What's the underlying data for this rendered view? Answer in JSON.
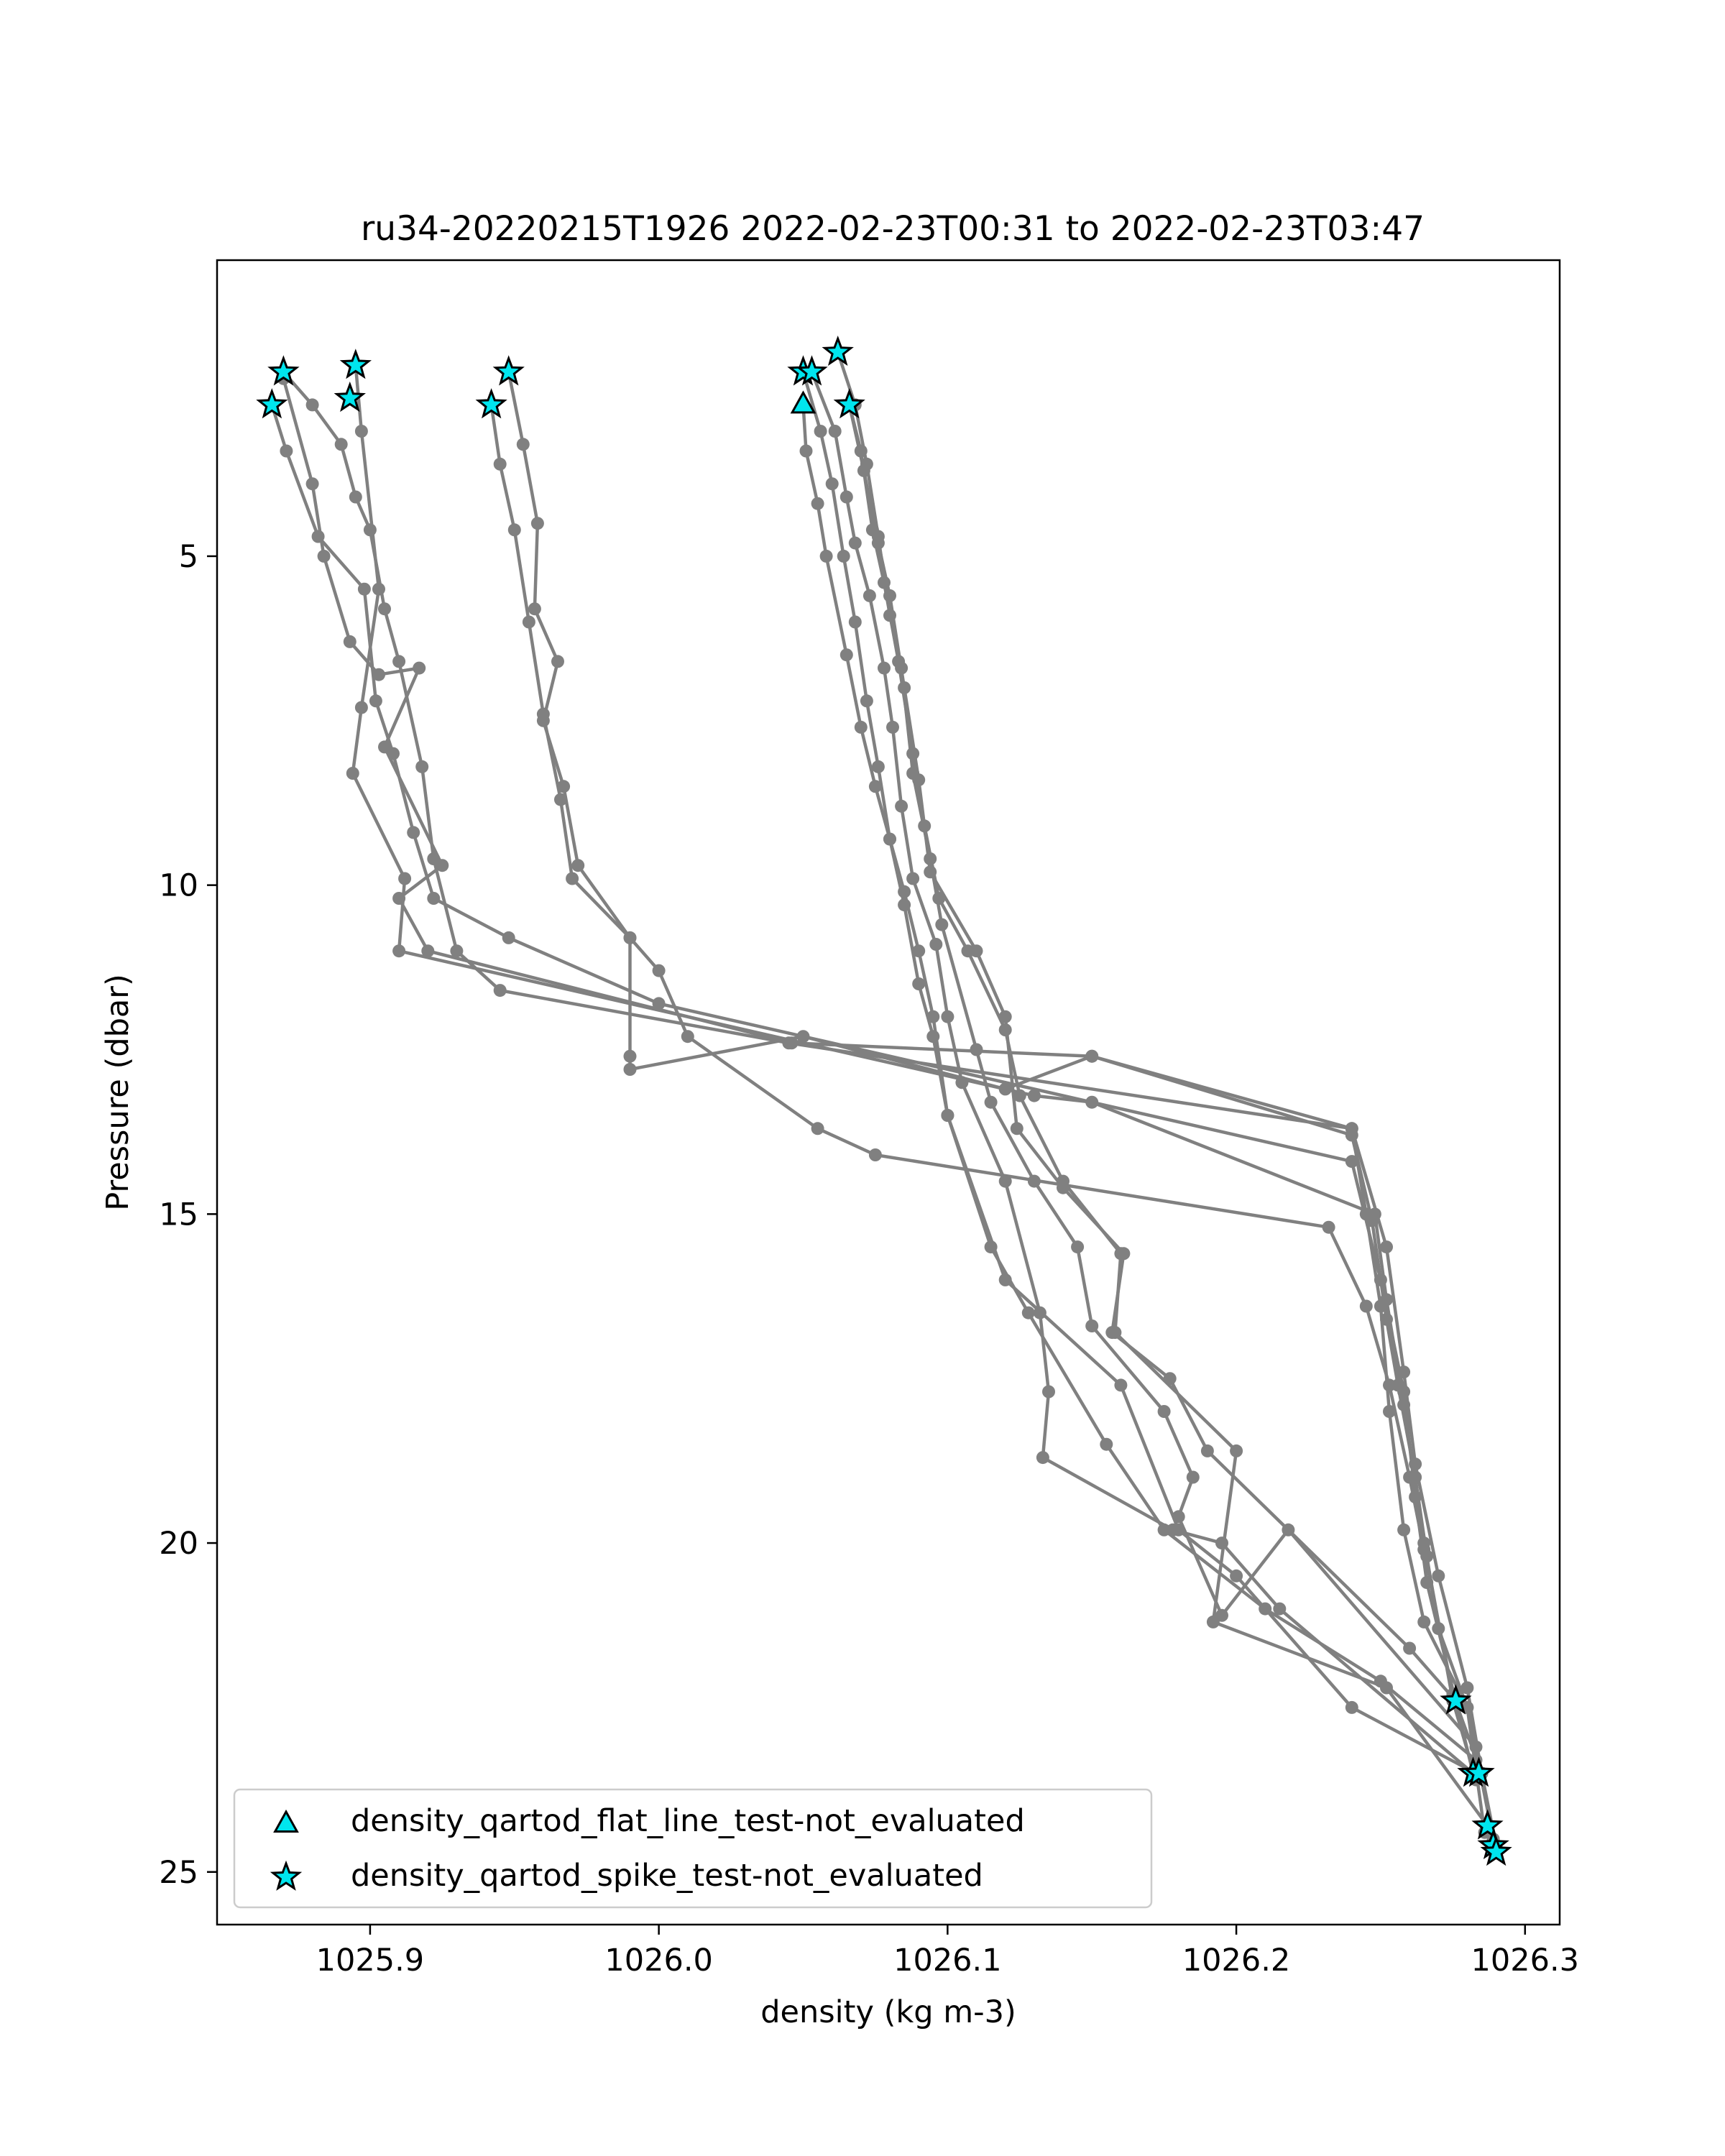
{
  "chart_data": {
    "type": "line",
    "title": "ru34-20220215T1926 2022-02-23T00:31 to 2022-02-23T03:47",
    "xlabel": "density (kg m-3)",
    "ylabel": "Pressure (dbar)",
    "xlim": [
      1025.847,
      1026.312
    ],
    "ylim": [
      25.8,
      0.5
    ],
    "y_inverted": true,
    "grid": false,
    "xticks": [
      1025.9,
      1026.0,
      1026.1,
      1026.2,
      1026.3
    ],
    "xtick_labels": [
      "1025.9",
      "1026.0",
      "1026.1",
      "1026.2",
      "1026.3"
    ],
    "yticks": [
      5,
      10,
      15,
      20,
      25
    ],
    "ytick_labels": [
      "5",
      "10",
      "15",
      "20",
      "25"
    ],
    "line_color": "#808080",
    "marker_color": "#808080",
    "flag_color": "#00e5ee",
    "legend": {
      "position": "lower left",
      "entries": [
        {
          "label": "density_qartod_flat_line_test-not_evaluated",
          "marker": "triangle"
        },
        {
          "label": "density_qartod_spike_test-not_evaluated",
          "marker": "star"
        }
      ]
    },
    "series": [
      {
        "points": [
          [
            1025.87,
            2.2
          ],
          [
            1025.88,
            2.7
          ],
          [
            1025.89,
            3.3
          ],
          [
            1025.895,
            4.1
          ],
          [
            1025.9,
            4.6
          ],
          [
            1025.905,
            5.8
          ],
          [
            1025.91,
            6.6
          ],
          [
            1025.918,
            8.2
          ],
          [
            1025.922,
            9.6
          ],
          [
            1025.93,
            11.0
          ],
          [
            1025.945,
            11.6
          ],
          [
            1026.045,
            12.4
          ],
          [
            1026.24,
            13.7
          ],
          [
            1026.252,
            15.5
          ],
          [
            1026.258,
            17.4
          ],
          [
            1026.262,
            18.8
          ],
          [
            1026.27,
            20.5
          ],
          [
            1026.28,
            22.2
          ],
          [
            1026.285,
            23.5
          ]
        ]
      },
      {
        "points": [
          [
            1025.866,
            2.7
          ],
          [
            1025.871,
            3.4
          ],
          [
            1025.882,
            4.7
          ],
          [
            1025.898,
            5.5
          ],
          [
            1025.902,
            7.2
          ],
          [
            1025.908,
            8.0
          ],
          [
            1025.915,
            9.2
          ],
          [
            1025.922,
            10.2
          ],
          [
            1025.948,
            10.8
          ],
          [
            1026.0,
            11.8
          ],
          [
            1026.24,
            14.2
          ],
          [
            1026.25,
            16.0
          ],
          [
            1026.258,
            17.7
          ],
          [
            1026.262,
            19.3
          ],
          [
            1026.266,
            20.6
          ],
          [
            1026.282,
            23.5
          ]
        ]
      },
      {
        "points": [
          [
            1025.87,
            2.3
          ],
          [
            1025.88,
            3.9
          ],
          [
            1025.884,
            5.0
          ],
          [
            1025.893,
            6.3
          ],
          [
            1025.903,
            6.8
          ],
          [
            1025.917,
            6.7
          ],
          [
            1025.905,
            7.9
          ],
          [
            1025.925,
            9.7
          ],
          [
            1025.91,
            10.2
          ],
          [
            1025.92,
            11.0
          ],
          [
            1026.046,
            12.4
          ],
          [
            1026.15,
            12.6
          ],
          [
            1026.24,
            13.8
          ],
          [
            1026.247,
            15.1
          ],
          [
            1026.252,
            16.6
          ],
          [
            1026.256,
            17.6
          ],
          [
            1026.262,
            19.0
          ],
          [
            1026.266,
            20.2
          ],
          [
            1026.27,
            21.3
          ],
          [
            1026.28,
            22.5
          ],
          [
            1026.286,
            24.4
          ]
        ]
      },
      {
        "points": [
          [
            1025.895,
            2.1
          ],
          [
            1025.897,
            3.1
          ],
          [
            1025.903,
            5.5
          ],
          [
            1025.897,
            7.3
          ],
          [
            1025.894,
            8.3
          ],
          [
            1025.912,
            9.9
          ],
          [
            1025.91,
            11.0
          ],
          [
            1026.13,
            13.2
          ],
          [
            1026.15,
            13.3
          ],
          [
            1026.248,
            15.0
          ],
          [
            1026.252,
            16.3
          ],
          [
            1026.258,
            17.9
          ],
          [
            1026.265,
            20.0
          ],
          [
            1026.275,
            22.4
          ],
          [
            1026.283,
            23.6
          ]
        ]
      },
      {
        "points": [
          [
            1025.948,
            2.2
          ],
          [
            1025.953,
            3.3
          ],
          [
            1025.958,
            4.5
          ],
          [
            1025.957,
            5.8
          ],
          [
            1025.965,
            6.6
          ],
          [
            1025.96,
            7.5
          ],
          [
            1025.967,
            8.5
          ],
          [
            1025.972,
            9.7
          ],
          [
            1025.99,
            10.8
          ],
          [
            1026.0,
            11.3
          ],
          [
            1026.01,
            12.3
          ],
          [
            1026.055,
            13.7
          ],
          [
            1026.075,
            14.1
          ],
          [
            1026.232,
            15.2
          ],
          [
            1026.245,
            16.4
          ],
          [
            1026.253,
            17.6
          ],
          [
            1026.26,
            19.0
          ],
          [
            1026.265,
            20.1
          ],
          [
            1026.275,
            22.3
          ],
          [
            1026.285,
            23.5
          ],
          [
            1026.29,
            24.6
          ]
        ]
      },
      {
        "points": [
          [
            1025.942,
            2.7
          ],
          [
            1025.945,
            3.6
          ],
          [
            1025.95,
            4.6
          ],
          [
            1025.955,
            6.0
          ],
          [
            1025.96,
            7.4
          ],
          [
            1025.966,
            8.7
          ],
          [
            1025.97,
            9.9
          ],
          [
            1025.99,
            10.8
          ],
          [
            1025.99,
            12.6
          ],
          [
            1025.99,
            12.8
          ],
          [
            1026.05,
            12.3
          ],
          [
            1026.12,
            13.1
          ],
          [
            1026.15,
            12.6
          ],
          [
            1026.24,
            13.7
          ],
          [
            1026.245,
            15.0
          ],
          [
            1026.25,
            16.4
          ],
          [
            1026.253,
            18.0
          ],
          [
            1026.258,
            19.8
          ],
          [
            1026.265,
            21.2
          ],
          [
            1026.28,
            22.5
          ],
          [
            1026.289,
            24.5
          ]
        ]
      },
      {
        "points": [
          [
            1026.05,
            2.7
          ],
          [
            1026.051,
            3.4
          ],
          [
            1026.055,
            4.2
          ],
          [
            1026.058,
            5.0
          ],
          [
            1026.065,
            6.5
          ],
          [
            1026.07,
            7.6
          ],
          [
            1026.075,
            8.5
          ],
          [
            1026.08,
            9.3
          ],
          [
            1026.085,
            10.3
          ],
          [
            1026.09,
            11.5
          ],
          [
            1026.095,
            12.3
          ],
          [
            1026.1,
            13.5
          ],
          [
            1026.12,
            16.0
          ],
          [
            1026.16,
            17.6
          ],
          [
            1026.18,
            19.8
          ],
          [
            1026.2,
            20.5
          ],
          [
            1026.24,
            22.5
          ],
          [
            1026.283,
            23.5
          ]
        ]
      },
      {
        "points": [
          [
            1026.05,
            2.2
          ],
          [
            1026.056,
            3.1
          ],
          [
            1026.06,
            3.9
          ],
          [
            1026.064,
            5.0
          ],
          [
            1026.068,
            6.0
          ],
          [
            1026.072,
            7.2
          ],
          [
            1026.076,
            8.2
          ],
          [
            1026.08,
            9.3
          ],
          [
            1026.085,
            10.1
          ],
          [
            1026.09,
            11.0
          ],
          [
            1026.095,
            12.0
          ],
          [
            1026.1,
            13.5
          ],
          [
            1026.115,
            15.5
          ],
          [
            1026.128,
            16.5
          ],
          [
            1026.155,
            18.5
          ],
          [
            1026.175,
            19.8
          ],
          [
            1026.21,
            21.0
          ],
          [
            1026.25,
            22.1
          ],
          [
            1026.283,
            23.3
          ]
        ]
      },
      {
        "points": [
          [
            1026.053,
            2.2
          ],
          [
            1026.061,
            3.1
          ],
          [
            1026.065,
            4.1
          ],
          [
            1026.068,
            4.8
          ],
          [
            1026.073,
            5.6
          ],
          [
            1026.078,
            6.7
          ],
          [
            1026.081,
            7.6
          ],
          [
            1026.084,
            8.8
          ],
          [
            1026.088,
            9.9
          ],
          [
            1026.096,
            10.9
          ],
          [
            1026.1,
            12.0
          ],
          [
            1026.105,
            13.0
          ],
          [
            1026.12,
            14.5
          ],
          [
            1026.132,
            16.5
          ],
          [
            1026.135,
            17.7
          ],
          [
            1026.133,
            18.7
          ],
          [
            1026.178,
            19.8
          ],
          [
            1026.195,
            20.0
          ],
          [
            1026.215,
            21.0
          ],
          [
            1026.282,
            23.5
          ]
        ]
      },
      {
        "points": [
          [
            1026.062,
            1.9
          ],
          [
            1026.068,
            2.7
          ],
          [
            1026.072,
            3.6
          ],
          [
            1026.076,
            4.7
          ],
          [
            1026.08,
            5.9
          ],
          [
            1026.084,
            6.7
          ],
          [
            1026.088,
            8.3
          ],
          [
            1026.094,
            9.6
          ],
          [
            1026.098,
            10.6
          ],
          [
            1026.11,
            12.5
          ],
          [
            1026.115,
            13.3
          ],
          [
            1026.13,
            14.5
          ],
          [
            1026.145,
            15.5
          ],
          [
            1026.15,
            16.7
          ],
          [
            1026.175,
            18.0
          ],
          [
            1026.185,
            19.0
          ],
          [
            1026.18,
            19.6
          ],
          [
            1026.195,
            21.1
          ],
          [
            1026.218,
            19.8
          ],
          [
            1026.283,
            23.1
          ]
        ]
      },
      {
        "points": [
          [
            1026.066,
            2.7
          ],
          [
            1026.07,
            3.4
          ],
          [
            1026.074,
            4.6
          ],
          [
            1026.078,
            5.4
          ],
          [
            1026.083,
            6.6
          ],
          [
            1026.088,
            8.0
          ],
          [
            1026.092,
            9.1
          ],
          [
            1026.097,
            10.2
          ],
          [
            1026.107,
            11.0
          ],
          [
            1026.12,
            12.2
          ],
          [
            1026.125,
            13.2
          ],
          [
            1026.14,
            14.5
          ],
          [
            1026.16,
            15.6
          ],
          [
            1026.158,
            16.8
          ],
          [
            1026.2,
            18.6
          ],
          [
            1026.192,
            21.2
          ],
          [
            1026.252,
            22.2
          ],
          [
            1026.287,
            24.3
          ]
        ]
      },
      {
        "points": [
          [
            1026.066,
            2.7
          ],
          [
            1026.071,
            3.7
          ],
          [
            1026.076,
            4.8
          ],
          [
            1026.08,
            5.6
          ],
          [
            1026.085,
            7.0
          ],
          [
            1026.09,
            8.4
          ],
          [
            1026.094,
            9.8
          ],
          [
            1026.11,
            11.0
          ],
          [
            1026.12,
            12.0
          ],
          [
            1026.124,
            13.7
          ],
          [
            1026.14,
            14.6
          ],
          [
            1026.161,
            15.6
          ],
          [
            1026.157,
            16.8
          ],
          [
            1026.177,
            17.5
          ],
          [
            1026.19,
            18.6
          ],
          [
            1026.26,
            21.6
          ],
          [
            1026.276,
            22.4
          ]
        ]
      }
    ],
    "flat_line_flags": [
      [
        1026.05,
        2.7
      ]
    ],
    "spike_flags": [
      [
        1025.87,
        2.2
      ],
      [
        1025.866,
        2.7
      ],
      [
        1025.895,
        2.1
      ],
      [
        1025.893,
        2.6
      ],
      [
        1025.948,
        2.2
      ],
      [
        1025.942,
        2.7
      ],
      [
        1026.05,
        2.2
      ],
      [
        1026.053,
        2.2
      ],
      [
        1026.062,
        1.9
      ],
      [
        1026.066,
        2.7
      ],
      [
        1026.276,
        22.4
      ],
      [
        1026.282,
        23.5
      ],
      [
        1026.284,
        23.5
      ],
      [
        1026.287,
        24.3
      ],
      [
        1026.289,
        24.6
      ],
      [
        1026.29,
        24.7
      ]
    ]
  }
}
